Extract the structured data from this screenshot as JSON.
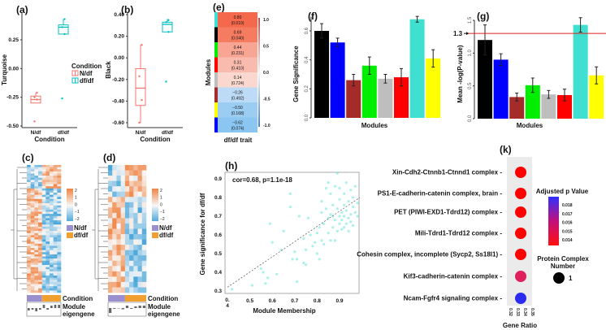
{
  "chart_data": [
    {
      "panel": "(a)",
      "type": "box",
      "xlabel": "Condition",
      "ylabel": "Turquoise",
      "categories": [
        "N/df",
        "df/df"
      ],
      "yticks": [
        "0.25",
        "0.00",
        "-0.25",
        "-0.50"
      ],
      "ylim": [
        -0.5,
        0.45
      ],
      "legend": {
        "title": "Condition",
        "entries": [
          "N/df",
          "df/df"
        ],
        "placement": "right"
      },
      "colors": [
        "#f8766d",
        "#00bfc4"
      ],
      "boxes": [
        {
          "min": -0.3,
          "q1": -0.3,
          "median": -0.27,
          "q3": -0.24,
          "max": -0.21,
          "points": [
            -0.46,
            -0.27,
            -0.25,
            -0.21
          ]
        },
        {
          "min": 0.3,
          "q1": 0.3,
          "median": 0.36,
          "q3": 0.38,
          "max": 0.43,
          "points": [
            -0.26,
            0.3,
            0.36,
            0.43
          ]
        }
      ]
    },
    {
      "panel": "(b)",
      "type": "box",
      "xlabel": "Condition",
      "ylabel": "Black",
      "categories": [
        "N/df",
        "df/df"
      ],
      "yticks": [
        "0.40",
        "0.20",
        "0.00",
        "-0.20",
        "-0.40",
        "-0.60"
      ],
      "ylim": [
        -0.62,
        0.42
      ],
      "colors": [
        "#f8766d",
        "#00bfc4"
      ],
      "boxes": [
        {
          "min": -0.6,
          "q1": -0.44,
          "median": -0.28,
          "q3": -0.1,
          "max": 0.12,
          "points": [
            -0.6,
            -0.39,
            -0.17,
            0.12
          ]
        },
        {
          "min": 0.24,
          "q1": 0.24,
          "median": 0.31,
          "q3": 0.33,
          "max": 0.36,
          "points": [
            -0.22,
            0.24,
            0.33,
            0.35
          ]
        }
      ]
    },
    {
      "panel": "(c)",
      "type": "heatmap",
      "colorbar_ticks": [
        "2",
        "1",
        "0",
        "−1",
        "−2"
      ],
      "legend": [
        "N/df",
        "df/df"
      ],
      "legend_colors": [
        "#9b8fd0",
        "#f0a030"
      ],
      "annotation_labels": [
        "Condition",
        "Module",
        "eigengene"
      ],
      "eigengene": [
        -0.3,
        -0.2,
        -0.4,
        -0.2,
        0.4,
        -0.2,
        0.3,
        0.4,
        0.4
      ]
    },
    {
      "panel": "(d)",
      "type": "heatmap",
      "colorbar_ticks": [
        "2",
        "1",
        "0",
        "−1",
        "−2"
      ],
      "legend": [
        "N/df",
        "df/df"
      ],
      "legend_colors": [
        "#9b8fd0",
        "#f0a030"
      ],
      "annotation_labels": [
        "Condition",
        "Module",
        "eigengene"
      ],
      "eigengene": [
        -0.6,
        -0.1,
        -0.05,
        -0.15,
        0.3,
        -0.1,
        0.2,
        0.3,
        0.3
      ]
    },
    {
      "panel": "(e)",
      "type": "heatmap",
      "ylabel": "Modules",
      "xlabel": "df/df trait",
      "module_colors": [
        "#40e0d0",
        "#000000",
        "#00ee00",
        "#ff0000",
        "#bebebe",
        "#a52a2a",
        "#ffff00",
        "#0000ff"
      ],
      "values": [
        0.8,
        0.69,
        0.44,
        0.31,
        0.14,
        -0.26,
        -0.5,
        -0.62
      ],
      "pvalues": [
        "(0.010)",
        "(0.040)",
        "(0.231)",
        "(0.410)",
        "(0.724)",
        "(0.492)",
        "(0.168)",
        "(0.074)"
      ],
      "labels": [
        "0.80",
        "0.69",
        "0.44",
        "0.31",
        "0.14",
        "−0.26",
        "−0.50",
        "−0.62"
      ],
      "colorbar_ticks": [
        "1.0",
        "0.5",
        "0.0",
        "-0.5",
        "-1.0"
      ]
    },
    {
      "panel": "(f)",
      "type": "bar",
      "xlabel": "Modules",
      "ylabel": "Gene Significance",
      "yticks": [
        "0.0",
        "0.2",
        "0.4",
        "0.6"
      ],
      "ylim": [
        0,
        0.72
      ],
      "colors": [
        "#000000",
        "#0000ff",
        "#a52a2a",
        "#00ee00",
        "#bebebe",
        "#ff0000",
        "#40e0d0",
        "#ffff00"
      ],
      "values": [
        0.6,
        0.52,
        0.26,
        0.36,
        0.27,
        0.28,
        0.68,
        0.41
      ],
      "errors": [
        0.05,
        0.03,
        0.04,
        0.06,
        0.03,
        0.06,
        0.02,
        0.06
      ]
    },
    {
      "panel": "(g)",
      "type": "bar",
      "xlabel": "Modules",
      "ylabel": "Mean -log(P-value)",
      "yticks": [
        "0.0",
        "0.5",
        "1.0",
        "1.5"
      ],
      "ylim": [
        0,
        1.55
      ],
      "threshold": {
        "value": 1.3,
        "label": "1.3",
        "color": "#e02020"
      },
      "colors": [
        "#000000",
        "#0000ff",
        "#a52a2a",
        "#00ee00",
        "#bebebe",
        "#ff0000",
        "#40e0d0",
        "#ffff00"
      ],
      "values": [
        1.2,
        0.9,
        0.33,
        0.51,
        0.37,
        0.36,
        1.43,
        0.66
      ],
      "errors": [
        0.23,
        0.09,
        0.06,
        0.11,
        0.06,
        0.09,
        0.11,
        0.13
      ]
    },
    {
      "panel": "(h)",
      "type": "scatter",
      "xlabel": "Module Membership",
      "ylabel": "Gene significance for df/df",
      "annotation": "cor=0.68, p=1.1e-18",
      "xlim": [
        0.4,
        1.0
      ],
      "ylim": [
        0.3,
        0.95
      ],
      "xticks": [
        "0.\n4",
        "0.5",
        "0.6",
        "0.7",
        "0.8",
        "0.9"
      ],
      "yticks": [
        "0.3",
        "0.4",
        "0.5",
        "0.6",
        "0.7",
        "0.8",
        "0.9"
      ],
      "color": "#40e0d0",
      "fit_line": [
        [
          0.4,
          0.32
        ],
        [
          0.99,
          0.8
        ]
      ],
      "points": [
        [
          0.42,
          0.31
        ],
        [
          0.51,
          0.33
        ],
        [
          0.55,
          0.42
        ],
        [
          0.56,
          0.4
        ],
        [
          0.57,
          0.34
        ],
        [
          0.58,
          0.37
        ],
        [
          0.59,
          0.66
        ],
        [
          0.6,
          0.56
        ],
        [
          0.62,
          0.39
        ],
        [
          0.64,
          0.52
        ],
        [
          0.65,
          0.62
        ],
        [
          0.68,
          0.82
        ],
        [
          0.68,
          0.75
        ],
        [
          0.69,
          0.47
        ],
        [
          0.7,
          0.51
        ],
        [
          0.71,
          0.47
        ],
        [
          0.71,
          0.35
        ],
        [
          0.72,
          0.7
        ],
        [
          0.74,
          0.58
        ],
        [
          0.74,
          0.45
        ],
        [
          0.75,
          0.52
        ],
        [
          0.75,
          0.44
        ],
        [
          0.76,
          0.69
        ],
        [
          0.77,
          0.6
        ],
        [
          0.78,
          0.54
        ],
        [
          0.79,
          0.56
        ],
        [
          0.8,
          0.61
        ],
        [
          0.8,
          0.5
        ],
        [
          0.81,
          0.47
        ],
        [
          0.81,
          0.64
        ],
        [
          0.82,
          0.72
        ],
        [
          0.82,
          0.57
        ],
        [
          0.82,
          0.78
        ],
        [
          0.83,
          0.66
        ],
        [
          0.83,
          0.55
        ],
        [
          0.84,
          0.85
        ],
        [
          0.84,
          0.74
        ],
        [
          0.85,
          0.61
        ],
        [
          0.85,
          0.69
        ],
        [
          0.85,
          0.88
        ],
        [
          0.86,
          0.71
        ],
        [
          0.86,
          0.57
        ],
        [
          0.86,
          0.82
        ],
        [
          0.87,
          0.64
        ],
        [
          0.87,
          0.76
        ],
        [
          0.87,
          0.7
        ],
        [
          0.88,
          0.68
        ],
        [
          0.88,
          0.86
        ],
        [
          0.88,
          0.57
        ],
        [
          0.89,
          0.74
        ],
        [
          0.89,
          0.62
        ],
        [
          0.89,
          0.93
        ],
        [
          0.9,
          0.7
        ],
        [
          0.9,
          0.66
        ],
        [
          0.9,
          0.79
        ],
        [
          0.9,
          0.85
        ],
        [
          0.91,
          0.63
        ],
        [
          0.91,
          0.72
        ],
        [
          0.91,
          0.68
        ],
        [
          0.92,
          0.76
        ],
        [
          0.92,
          0.64
        ],
        [
          0.92,
          0.82
        ],
        [
          0.92,
          0.7
        ],
        [
          0.93,
          0.66
        ],
        [
          0.93,
          0.88
        ],
        [
          0.93,
          0.73
        ],
        [
          0.94,
          0.69
        ],
        [
          0.94,
          0.78
        ],
        [
          0.94,
          0.62
        ],
        [
          0.95,
          0.84
        ],
        [
          0.95,
          0.71
        ],
        [
          0.95,
          0.67
        ],
        [
          0.96,
          0.75
        ],
        [
          0.96,
          0.8
        ],
        [
          0.96,
          0.65
        ],
        [
          0.97,
          0.72
        ],
        [
          0.97,
          0.86
        ],
        [
          0.98,
          0.77
        ],
        [
          0.98,
          0.7
        ]
      ]
    },
    {
      "panel": "(k)",
      "type": "dot",
      "xlabel": "Gene Ratio",
      "xticks": [
        "0.32",
        "0.33",
        "0.34",
        "0.35"
      ],
      "categories": [
        "Xin-Cdh2-Ctnnb1-Ctnnd1 complex",
        "PS1-E-cadherin-catenin complex, brain",
        "PET (PIWI-EXD1-Tdrd12) complex",
        "Mili-Tdrd1-Tdrd12 complex",
        "Cohesin complex, incomplete (Sycp2, Ss18l1)",
        "Kif3-cadherin-catenin complex",
        "Ncam-Fgfr4 signaling complex"
      ],
      "gene_ratio": [
        0.333,
        0.333,
        0.333,
        0.333,
        0.333,
        0.333,
        0.333
      ],
      "adjusted_p": [
        0.0135,
        0.0135,
        0.0135,
        0.0135,
        0.0135,
        0.0145,
        0.0185
      ],
      "dot_colors": [
        "#ff0000",
        "#ff0000",
        "#ff0000",
        "#ff0000",
        "#ff0000",
        "#e0205a",
        "#2a2af0"
      ],
      "color_legend": {
        "title": "Adjusted p Value",
        "ticks": [
          "0.018",
          "0.017",
          "0.016",
          "0.015",
          "0.014"
        ]
      },
      "size_legend": {
        "title": [
          "Protein Complex",
          "Number"
        ],
        "value": "1"
      }
    }
  ]
}
